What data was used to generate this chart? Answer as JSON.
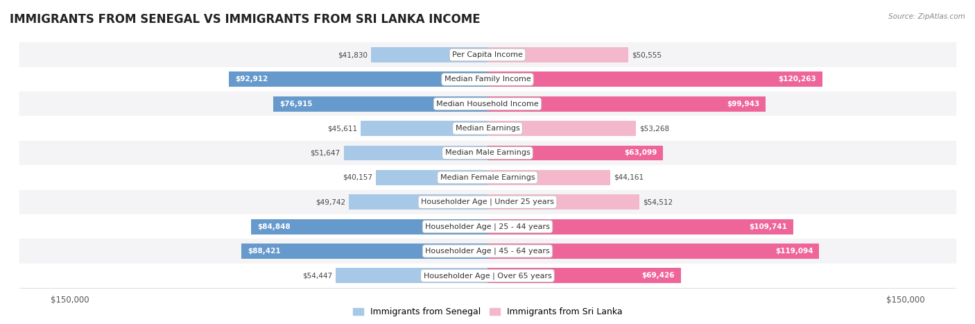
{
  "title": "IMMIGRANTS FROM SENEGAL VS IMMIGRANTS FROM SRI LANKA INCOME",
  "source": "Source: ZipAtlas.com",
  "categories": [
    "Per Capita Income",
    "Median Family Income",
    "Median Household Income",
    "Median Earnings",
    "Median Male Earnings",
    "Median Female Earnings",
    "Householder Age | Under 25 years",
    "Householder Age | 25 - 44 years",
    "Householder Age | 45 - 64 years",
    "Householder Age | Over 65 years"
  ],
  "senegal_values": [
    41830,
    92912,
    76915,
    45611,
    51647,
    40157,
    49742,
    84848,
    88421,
    54447
  ],
  "srilanka_values": [
    50555,
    120263,
    99943,
    53268,
    63099,
    44161,
    54512,
    109741,
    119094,
    69426
  ],
  "senegal_color_light": "#a8c8e8",
  "senegal_color_dark": "#6699cc",
  "srilanka_color_light": "#f4b8cc",
  "srilanka_color_dark": "#ee6699",
  "senegal_label": "Immigrants from Senegal",
  "srilanka_label": "Immigrants from Sri Lanka",
  "max_value": 150000,
  "background_color": "#ffffff",
  "row_bg_even": "#f4f4f6",
  "row_bg_odd": "#ffffff",
  "title_fontsize": 12,
  "label_fontsize": 8,
  "value_fontsize": 7.5,
  "axis_label": "$150,000",
  "inside_text_threshold": 62000
}
